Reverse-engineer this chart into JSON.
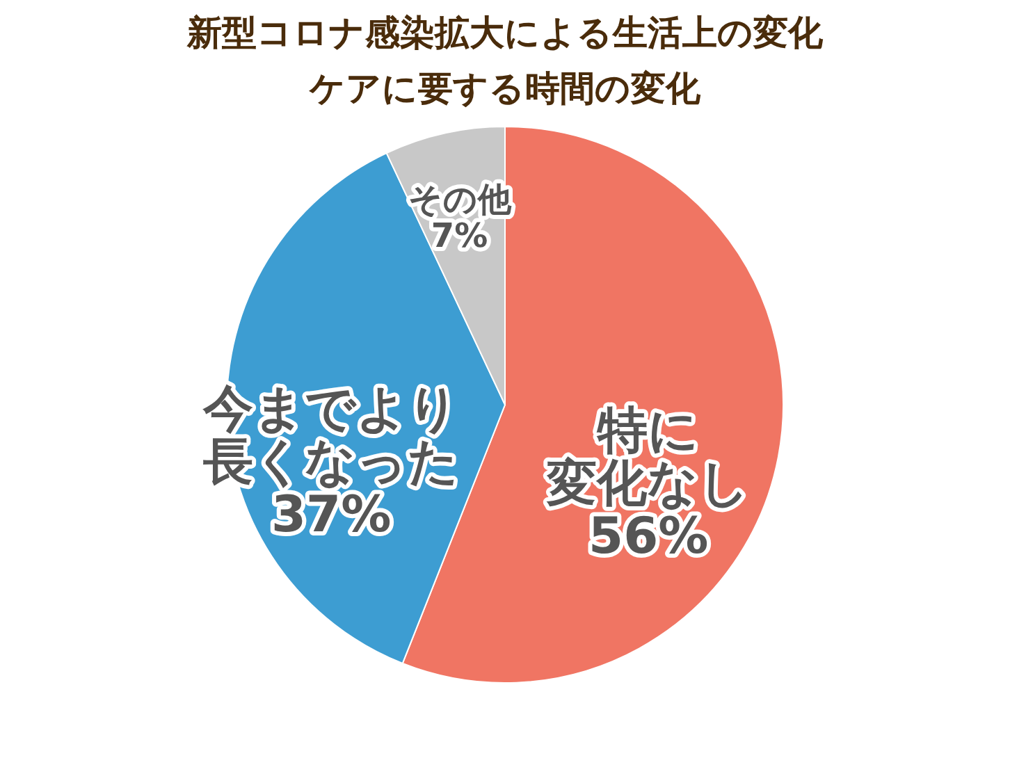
{
  "chart_data": {
    "type": "pie",
    "title": "新型コロナ感染拡大による生活上の変化",
    "subtitle": "ケアに要する時間の変化",
    "categories": [
      "特に変化なし",
      "今までより長くなった",
      "その他"
    ],
    "values": [
      56,
      37,
      7
    ],
    "colors": [
      "#f07563",
      "#3d9dd2",
      "#c8c8c8"
    ],
    "value_labels": [
      "56%",
      "37%",
      "7%"
    ],
    "legend": false
  }
}
